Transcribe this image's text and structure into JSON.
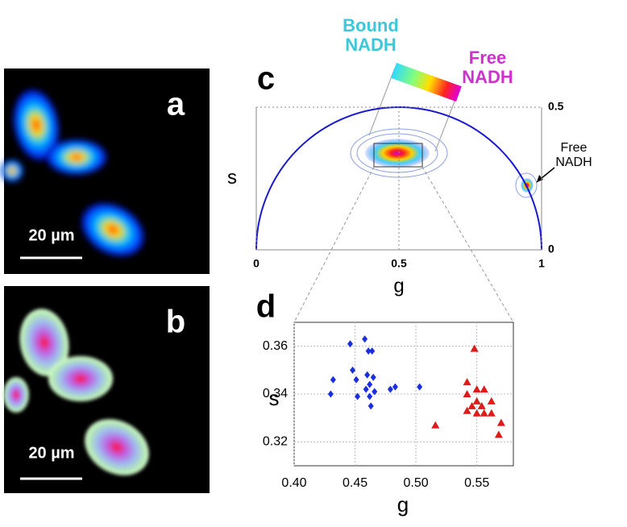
{
  "panels": {
    "a": {
      "label": "a",
      "scale_bar": "20 µm"
    },
    "b": {
      "label": "b",
      "scale_bar": "20 µm"
    }
  },
  "annotations": {
    "bound": "Bound NADH",
    "free": "Free NADH",
    "free_arrow": "Free NADH"
  },
  "chart_data": [
    {
      "type": "phasor",
      "panel_label": "c",
      "xlabel": "g",
      "ylabel": "s",
      "xlim": [
        0,
        1
      ],
      "ylim": [
        0,
        0.5
      ],
      "xticks": [
        0,
        0.5,
        1
      ],
      "yticks": [
        0,
        0.5
      ],
      "color": "#1a1acc"
    },
    {
      "type": "scatter",
      "panel_label": "d",
      "xlabel": "g",
      "ylabel": "s",
      "xlim": [
        0.4,
        0.58
      ],
      "ylim": [
        0.31,
        0.37
      ],
      "xticks": [
        {
          "value": 0.4,
          "label": "0.40"
        },
        {
          "value": 0.45,
          "label": "0.45"
        },
        {
          "value": 0.5,
          "label": "0.50"
        },
        {
          "value": 0.55,
          "label": "0.55"
        }
      ],
      "yticks": [
        0.32,
        0.34,
        0.36
      ],
      "grid": true,
      "series": [
        {
          "color": "#1a2ee0",
          "marker": "diamond",
          "x": [
            0.446,
            0.458,
            0.461,
            0.464,
            0.448,
            0.451,
            0.46,
            0.465,
            0.432,
            0.43,
            0.452,
            0.459,
            0.462,
            0.466,
            0.462,
            0.463,
            0.479,
            0.483,
            0.503
          ],
          "values": [
            0.361,
            0.363,
            0.358,
            0.358,
            0.35,
            0.346,
            0.348,
            0.347,
            0.346,
            0.34,
            0.339,
            0.342,
            0.344,
            0.341,
            0.339,
            0.335,
            0.342,
            0.343,
            0.343
          ]
        },
        {
          "color": "#e01a1a",
          "marker": "triangle",
          "x": [
            0.548,
            0.542,
            0.55,
            0.556,
            0.542,
            0.55,
            0.562,
            0.546,
            0.554,
            0.542,
            0.55,
            0.556,
            0.562,
            0.57,
            0.516,
            0.568
          ],
          "values": [
            0.359,
            0.345,
            0.342,
            0.342,
            0.34,
            0.337,
            0.337,
            0.335,
            0.335,
            0.333,
            0.332,
            0.332,
            0.332,
            0.328,
            0.327,
            0.323
          ]
        }
      ]
    }
  ]
}
